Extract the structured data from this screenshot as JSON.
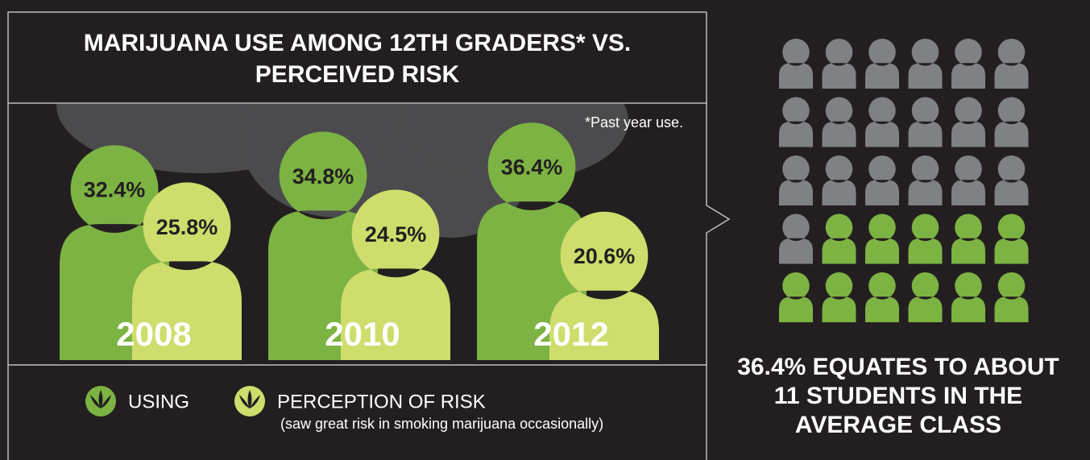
{
  "chart_data": [
    {
      "type": "pictobar",
      "title": "MARIJUANA USE AMONG 12TH GRADERS* VS. PERCEIVED RISK",
      "footnote": "*Past year use.",
      "categories": [
        "2008",
        "2010",
        "2012"
      ],
      "series": [
        {
          "name": "USING",
          "color": "#7db343",
          "values": [
            32.4,
            34.8,
            36.4
          ],
          "value_labels": [
            "32.4%",
            "34.8%",
            "36.4%"
          ]
        },
        {
          "name": "PERCEPTION OF RISK",
          "color": "#cfdd6c",
          "values": [
            25.8,
            24.5,
            20.6
          ],
          "value_labels": [
            "25.8%",
            "24.5%",
            "20.6%"
          ]
        }
      ],
      "legend_note": "(saw great risk in smoking marijuana occasionally)"
    },
    {
      "type": "pictogram",
      "total": 30,
      "highlighted": 11,
      "color": "#7db343",
      "base_color": "#808184",
      "caption": "36.4% EQUATES TO ABOUT 11 STUDENTS IN THE AVERAGE CLASS"
    }
  ]
}
